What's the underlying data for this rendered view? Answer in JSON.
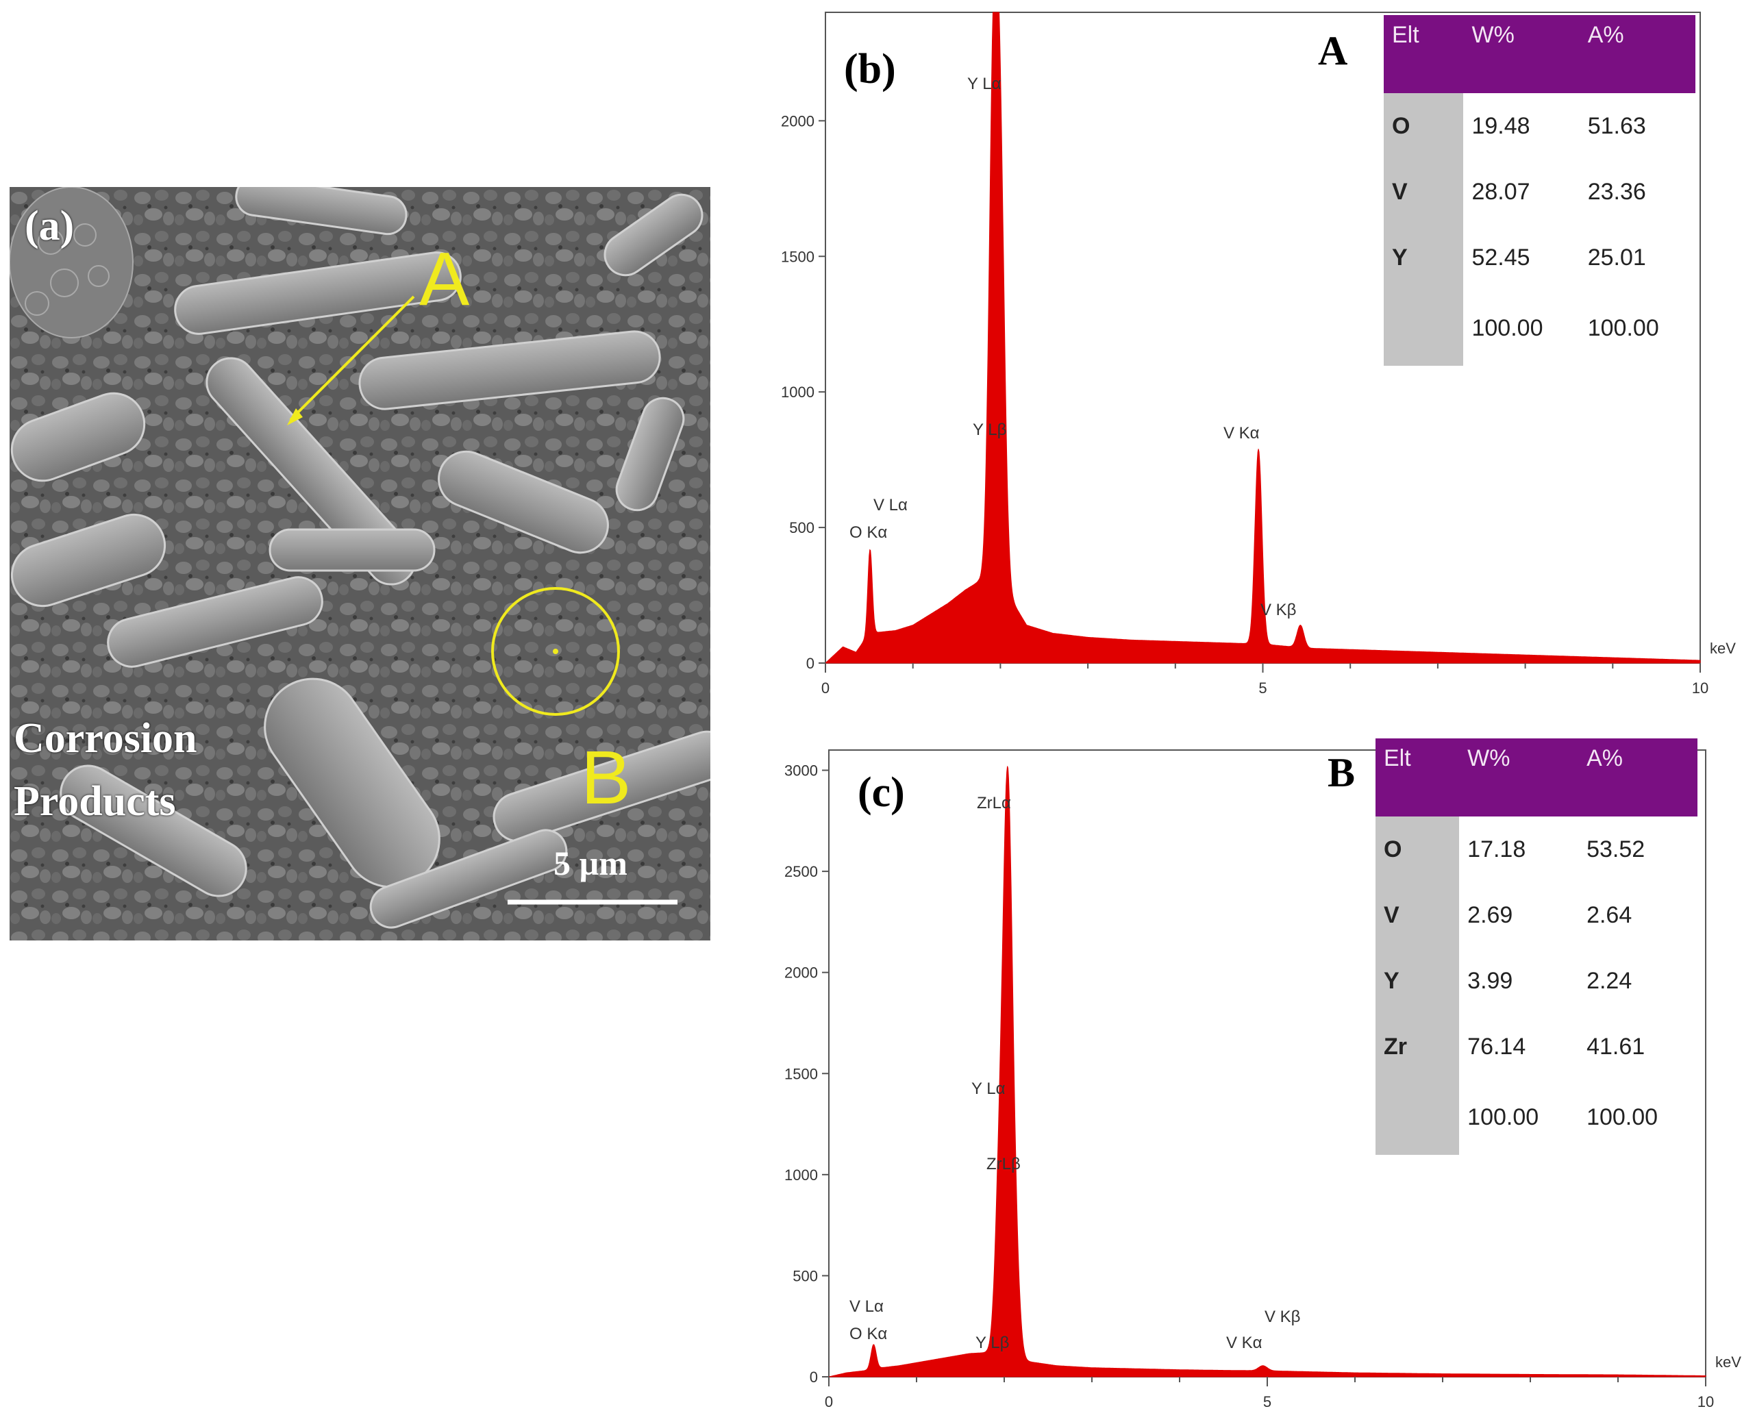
{
  "panel_a": {
    "label": "(a)",
    "point_a": "A",
    "point_b": "B",
    "annotation_line1": "Corrosion",
    "annotation_line2": "Products",
    "scale_bar": "5 µm"
  },
  "chart_data": [
    {
      "type": "area",
      "panel_label": "(b)",
      "point_label": "A",
      "xlabel": "keV",
      "xlim": [
        0,
        10
      ],
      "ylim": [
        0,
        2400
      ],
      "x_ticks": [
        0,
        5,
        10
      ],
      "y_ticks": [
        0,
        500,
        1000,
        1500,
        2000
      ],
      "color": "#e00000",
      "background": [
        [
          0,
          0
        ],
        [
          0.2,
          60
        ],
        [
          0.35,
          40
        ],
        [
          0.5,
          110
        ],
        [
          0.8,
          120
        ],
        [
          1.0,
          140
        ],
        [
          1.2,
          180
        ],
        [
          1.4,
          220
        ],
        [
          1.6,
          270
        ],
        [
          1.75,
          300
        ],
        [
          2.0,
          300
        ],
        [
          2.3,
          140
        ],
        [
          2.6,
          110
        ],
        [
          3.0,
          95
        ],
        [
          3.5,
          85
        ],
        [
          4.0,
          80
        ],
        [
          4.5,
          75
        ],
        [
          5.0,
          70
        ],
        [
          5.5,
          55
        ],
        [
          6.0,
          50
        ],
        [
          7.0,
          40
        ],
        [
          8.0,
          30
        ],
        [
          9.0,
          20
        ],
        [
          10.0,
          10
        ]
      ],
      "peaks": [
        {
          "label": "V Lα",
          "x": 0.51,
          "y": 420,
          "width": 0.025
        },
        {
          "label": "O Kα",
          "x": 0.52,
          "y": 0,
          "width": 0.025
        },
        {
          "label": "Y Lα",
          "x": 1.92,
          "y": 2100,
          "width": 0.05
        },
        {
          "label": "Y Lβ",
          "x": 2.0,
          "y": 1700,
          "width": 0.05
        },
        {
          "label": "V Kα",
          "x": 4.95,
          "y": 790,
          "width": 0.04
        },
        {
          "label": "V Kβ",
          "x": 5.43,
          "y": 140,
          "width": 0.04
        }
      ],
      "table": {
        "headers": [
          "Elt",
          "W%",
          "A%"
        ],
        "rows": [
          [
            "O",
            "19.48",
            "51.63"
          ],
          [
            "V",
            "28.07",
            "23.36"
          ],
          [
            "Y",
            "52.45",
            "25.01"
          ],
          [
            "",
            "100.00",
            "100.00"
          ]
        ]
      }
    },
    {
      "type": "area",
      "panel_label": "(c)",
      "point_label": "B",
      "xlabel": "keV",
      "xlim": [
        0,
        10
      ],
      "ylim": [
        0,
        3100
      ],
      "x_ticks": [
        0,
        5,
        10
      ],
      "y_ticks": [
        0,
        500,
        1000,
        1500,
        2000,
        2500,
        3000
      ],
      "color": "#e00000",
      "background": [
        [
          0,
          0
        ],
        [
          0.2,
          20
        ],
        [
          0.4,
          30
        ],
        [
          0.6,
          45
        ],
        [
          0.8,
          55
        ],
        [
          1.0,
          70
        ],
        [
          1.2,
          85
        ],
        [
          1.4,
          100
        ],
        [
          1.6,
          115
        ],
        [
          1.8,
          120
        ],
        [
          2.2,
          80
        ],
        [
          2.6,
          55
        ],
        [
          3.0,
          45
        ],
        [
          3.5,
          40
        ],
        [
          4.0,
          35
        ],
        [
          4.5,
          32
        ],
        [
          5.0,
          30
        ],
        [
          5.5,
          25
        ],
        [
          6.0,
          20
        ],
        [
          7.0,
          15
        ],
        [
          8.0,
          12
        ],
        [
          9.0,
          10
        ],
        [
          10.0,
          5
        ]
      ],
      "peaks": [
        {
          "label": "V Lα",
          "x": 0.51,
          "y": 160,
          "width": 0.03
        },
        {
          "label": "O Kα",
          "x": 0.52,
          "y": 0,
          "width": 0.03
        },
        {
          "label": "ZrLα",
          "x": 2.04,
          "y": 2700,
          "width": 0.05
        },
        {
          "label": "Y Lα",
          "x": 1.95,
          "y": 1000,
          "width": 0.05
        },
        {
          "label": "ZrLβ",
          "x": 2.12,
          "y": 600,
          "width": 0.05
        },
        {
          "label": "Y Lβ",
          "x": 1.98,
          "y": 0,
          "width": 0.05
        },
        {
          "label": "V Kα",
          "x": 4.95,
          "y": 55,
          "width": 0.05
        },
        {
          "label": "V Kβ",
          "x": 5.43,
          "y": 0,
          "width": 0.05
        }
      ],
      "table": {
        "headers": [
          "Elt",
          "W%",
          "A%"
        ],
        "rows": [
          [
            "O",
            "17.18",
            "53.52"
          ],
          [
            "V",
            "2.69",
            "2.64"
          ],
          [
            "Y",
            "3.99",
            "2.24"
          ],
          [
            "Zr",
            "76.14",
            "41.61"
          ],
          [
            "",
            "100.00",
            "100.00"
          ]
        ]
      }
    }
  ]
}
